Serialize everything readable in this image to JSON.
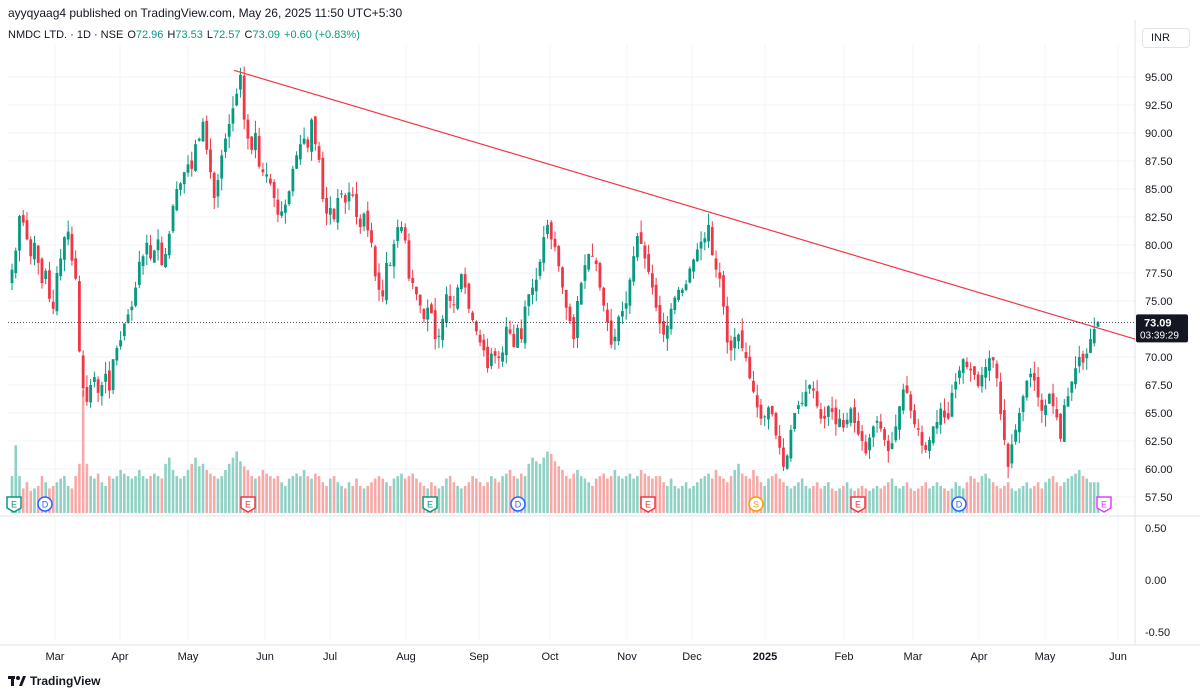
{
  "publisher_line": "ayyqyaag4 published on TradingView.com, May 26, 2025 11:50 UTC+5:30",
  "header": {
    "symbol": "NMDC LTD. · 1D · NSE",
    "o_label": "O",
    "o_value": "72.96",
    "h_label": "H",
    "h_value": "73.53",
    "l_label": "L",
    "l_value": "72.57",
    "c_label": "C",
    "c_value": "73.09",
    "change": "+0.60 (+0.83%)"
  },
  "currency_button": "INR",
  "price_tag": {
    "price": "73.09",
    "countdown": "03:39:29"
  },
  "footer_brand": "TradingView",
  "colors": {
    "up": "#089981",
    "down": "#f23645",
    "trend": "#f23645",
    "grid": "#f0f3fa"
  },
  "chart_data": {
    "type": "candlestick",
    "y_axis": {
      "min": 56.5,
      "max": 96.0,
      "ticks": [
        "57.50",
        "60.00",
        "62.50",
        "65.00",
        "67.50",
        "70.00",
        "72.50",
        "75.00",
        "77.50",
        "80.00",
        "82.50",
        "85.00",
        "87.50",
        "90.00",
        "92.50",
        "95.00"
      ]
    },
    "lower_pane_ticks": [
      "0.50",
      "0.00",
      "-0.50"
    ],
    "x_axis_labels": [
      "Mar",
      "Apr",
      "May",
      "Jun",
      "Jul",
      "Aug",
      "Sep",
      "Oct",
      "Nov",
      "Dec",
      "2025",
      "Feb",
      "Mar",
      "Apr",
      "May",
      "Jun"
    ],
    "last_price": 73.09,
    "trendline": {
      "start": {
        "date": "2024-05-21",
        "price": 95.6
      },
      "end": {
        "date": "2025-05-26",
        "price": 72.8
      }
    },
    "closes": [
      77.8,
      79.5,
      82.6,
      82.0,
      80.5,
      79.0,
      80.2,
      78.4,
      76.6,
      77.7,
      75.2,
      74.3,
      77.5,
      78.8,
      80.7,
      81.2,
      78.6,
      77.0,
      70.5,
      67.2,
      66.0,
      67.5,
      68.2,
      66.8,
      67.5,
      68.5,
      67.0,
      69.8,
      70.8,
      71.5,
      73.0,
      73.8,
      74.5,
      76.2,
      78.5,
      79.0,
      80.2,
      78.8,
      79.5,
      80.5,
      78.2,
      79.2,
      81.0,
      83.5,
      85.0,
      85.5,
      86.5,
      87.2,
      86.8,
      89.0,
      89.5,
      91.0,
      88.5,
      86.5,
      84.2,
      85.8,
      88.0,
      89.5,
      90.8,
      92.2,
      93.5,
      95.2,
      91.2,
      89.5,
      88.5,
      90.0,
      87.0,
      86.5,
      86.3,
      85.5,
      84.2,
      82.7,
      83.0,
      83.6,
      84.8,
      86.8,
      88.0,
      89.0,
      89.5,
      88.7,
      91.2,
      89.0,
      87.6,
      84.1,
      82.8,
      83.3,
      82.3,
      84.2,
      84.6,
      83.8,
      84.7,
      84.4,
      82.5,
      81.6,
      82.8,
      81.3,
      80.2,
      77.2,
      76.0,
      75.4,
      78.4,
      78.2,
      80.1,
      81.6,
      81.6,
      80.4,
      77.0,
      76.6,
      75.6,
      74.6,
      73.4,
      74.4,
      73.9,
      71.6,
      71.9,
      73.4,
      75.6,
      75.0,
      74.7,
      76.2,
      77.4,
      76.2,
      74.3,
      73.3,
      72.3,
      71.3,
      70.6,
      69.0,
      70.3,
      70.1,
      69.9,
      70.4,
      72.7,
      72.1,
      70.9,
      72.6,
      71.6,
      74.5,
      75.6,
      76.2,
      76.9,
      78.5,
      80.7,
      81.8,
      80.5,
      79.8,
      78.1,
      76.2,
      74.4,
      73.2,
      71.6,
      75.0,
      76.6,
      78.2,
      79.2,
      79.0,
      78.3,
      76.2,
      74.6,
      73.1,
      71.1,
      71.8,
      73.6,
      74.1,
      74.8,
      76.9,
      79.0,
      80.8,
      80.1,
      78.8,
      77.6,
      76.2,
      74.4,
      73.0,
      72.0,
      72.8,
      74.3,
      75.3,
      76.0,
      76.0,
      76.5,
      77.9,
      78.7,
      79.6,
      80.3,
      80.6,
      81.8,
      79.1,
      77.8,
      77.0,
      74.5,
      71.3,
      70.6,
      71.8,
      72.0,
      70.8,
      69.9,
      68.1,
      66.9,
      65.5,
      64.5,
      64.7,
      65.5,
      64.9,
      63.0,
      61.9,
      60.2,
      61.2,
      63.5,
      65.0,
      65.7,
      65.9,
      66.9,
      67.5,
      67.0,
      65.6,
      64.5,
      64.5,
      65.6,
      65.1,
      64.0,
      64.5,
      63.7,
      64.4,
      65.4,
      64.1,
      63.1,
      62.5,
      61.4,
      62.8,
      63.8,
      64.3,
      63.6,
      62.6,
      61.6,
      62.3,
      63.8,
      65.6,
      67.1,
      66.8,
      65.2,
      64.0,
      63.5,
      62.1,
      61.7,
      62.6,
      63.8,
      64.2,
      65.4,
      64.6,
      64.5,
      66.8,
      67.8,
      68.8,
      69.8,
      69.1,
      68.8,
      68.4,
      67.4,
      68.4,
      69.1,
      69.9,
      69.7,
      68.1,
      64.9,
      62.6,
      60.2,
      62.2,
      63.5,
      65.0,
      66.5,
      67.9,
      68.5,
      67.9,
      66.4,
      65.2,
      65.7,
      66.7,
      65.6,
      64.6,
      62.7,
      65.7,
      66.5,
      67.8,
      69.0,
      70.0,
      69.5,
      70.3,
      71.6,
      72.5,
      73.09
    ],
    "volume_relative": [
      0.3,
      0.55,
      0.3,
      0.2,
      0.25,
      0.18,
      0.2,
      0.22,
      0.3,
      0.25,
      0.2,
      0.22,
      0.25,
      0.28,
      0.3,
      0.22,
      0.2,
      0.3,
      0.4,
      1.0,
      0.4,
      0.3,
      0.28,
      0.32,
      0.25,
      0.22,
      0.3,
      0.28,
      0.3,
      0.35,
      0.32,
      0.3,
      0.28,
      0.3,
      0.35,
      0.3,
      0.28,
      0.3,
      0.32,
      0.3,
      0.28,
      0.4,
      0.45,
      0.35,
      0.3,
      0.28,
      0.3,
      0.35,
      0.4,
      0.45,
      0.38,
      0.4,
      0.35,
      0.32,
      0.3,
      0.28,
      0.3,
      0.35,
      0.4,
      0.45,
      0.5,
      0.42,
      0.38,
      0.35,
      0.3,
      0.28,
      0.3,
      0.35,
      0.32,
      0.3,
      0.28,
      0.3,
      0.25,
      0.22,
      0.28,
      0.3,
      0.32,
      0.3,
      0.35,
      0.3,
      0.28,
      0.32,
      0.3,
      0.25,
      0.22,
      0.28,
      0.3,
      0.25,
      0.22,
      0.2,
      0.25,
      0.22,
      0.28,
      0.22,
      0.2,
      0.22,
      0.25,
      0.28,
      0.3,
      0.28,
      0.25,
      0.22,
      0.28,
      0.3,
      0.32,
      0.28,
      0.3,
      0.32,
      0.28,
      0.25,
      0.22,
      0.2,
      0.25,
      0.22,
      0.2,
      0.22,
      0.28,
      0.3,
      0.25,
      0.22,
      0.2,
      0.22,
      0.25,
      0.3,
      0.28,
      0.25,
      0.22,
      0.25,
      0.3,
      0.28,
      0.25,
      0.3,
      0.32,
      0.35,
      0.3,
      0.28,
      0.32,
      0.3,
      0.4,
      0.45,
      0.42,
      0.4,
      0.45,
      0.5,
      0.48,
      0.42,
      0.38,
      0.35,
      0.3,
      0.28,
      0.32,
      0.35,
      0.3,
      0.28,
      0.25,
      0.22,
      0.28,
      0.3,
      0.32,
      0.28,
      0.3,
      0.35,
      0.3,
      0.28,
      0.3,
      0.32,
      0.28,
      0.3,
      0.35,
      0.32,
      0.3,
      0.28,
      0.3,
      0.3,
      0.25,
      0.22,
      0.28,
      0.22,
      0.2,
      0.22,
      0.25,
      0.2,
      0.22,
      0.25,
      0.28,
      0.3,
      0.32,
      0.28,
      0.35,
      0.3,
      0.28,
      0.25,
      0.3,
      0.35,
      0.4,
      0.32,
      0.3,
      0.28,
      0.35,
      0.3,
      0.25,
      0.22,
      0.28,
      0.3,
      0.32,
      0.28,
      0.25,
      0.22,
      0.2,
      0.22,
      0.25,
      0.28,
      0.22,
      0.2,
      0.22,
      0.25,
      0.2,
      0.22,
      0.25,
      0.2,
      0.18,
      0.2,
      0.22,
      0.25,
      0.2,
      0.18,
      0.2,
      0.22,
      0.2,
      0.18,
      0.2,
      0.22,
      0.2,
      0.22,
      0.25,
      0.28,
      0.22,
      0.2,
      0.22,
      0.25,
      0.2,
      0.18,
      0.2,
      0.22,
      0.25,
      0.2,
      0.22,
      0.25,
      0.22,
      0.2,
      0.18,
      0.2,
      0.25,
      0.22,
      0.2,
      0.25,
      0.3,
      0.28,
      0.25,
      0.3,
      0.32,
      0.28,
      0.25,
      0.22,
      0.2,
      0.22,
      0.25,
      0.2,
      0.18,
      0.2,
      0.22,
      0.25,
      0.2,
      0.22,
      0.25,
      0.2,
      0.25,
      0.28,
      0.3,
      0.25,
      0.22,
      0.25,
      0.28,
      0.3,
      0.32,
      0.35,
      0.3,
      0.28
    ],
    "event_badges": [
      {
        "type": "E",
        "color": "#089981"
      },
      {
        "type": "D",
        "color": "#2962ff"
      },
      {
        "type": "E",
        "color": "#f23645"
      },
      {
        "type": "E",
        "color": "#089981"
      },
      {
        "type": "D",
        "color": "#2962ff"
      },
      {
        "type": "E",
        "color": "#f23645"
      },
      {
        "type": "S",
        "color": "#ff9800"
      },
      {
        "type": "E",
        "color": "#f23645"
      },
      {
        "type": "D",
        "color": "#2962ff"
      },
      {
        "type": "E",
        "color": "#e040fb"
      }
    ]
  }
}
